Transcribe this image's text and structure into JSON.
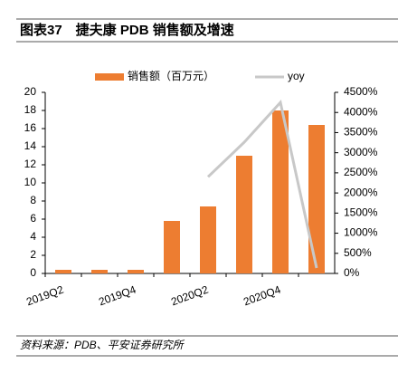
{
  "header": {
    "title": "图表37　捷夫康 PDB 销售额及增速"
  },
  "chart_data": {
    "type": "bar",
    "categories": [
      "2019Q2",
      null,
      "2019Q4",
      null,
      "2020Q2",
      null,
      "2020Q4",
      null
    ],
    "series": [
      {
        "name": "销售额（百万元）",
        "type": "bar",
        "color": "#ed7d31",
        "values": [
          0.4,
          0.4,
          0.4,
          5.8,
          7.4,
          13,
          18,
          16.4
        ]
      },
      {
        "name": "yoy",
        "type": "line",
        "axis": "y2",
        "color": "#c8c8c8",
        "values": [
          null,
          null,
          null,
          null,
          2400,
          3260,
          4250,
          135
        ]
      }
    ],
    "ylim": [
      0,
      20
    ],
    "yticks": [
      0,
      2,
      4,
      6,
      8,
      10,
      12,
      14,
      16,
      18,
      20
    ],
    "y2lim": [
      0,
      4500
    ],
    "y2ticks": [
      {
        "value": 0,
        "label": "0%"
      },
      {
        "value": 500,
        "label": "500%"
      },
      {
        "value": 1000,
        "label": "1000%"
      },
      {
        "value": 1500,
        "label": "1500%"
      },
      {
        "value": 2000,
        "label": "2000%"
      },
      {
        "value": 2500,
        "label": "2500%"
      },
      {
        "value": 3000,
        "label": "3000%"
      },
      {
        "value": 3500,
        "label": "3500%"
      },
      {
        "value": 4000,
        "label": "4000%"
      },
      {
        "value": 4500,
        "label": "4500%"
      }
    ],
    "legend": "top"
  },
  "footer": {
    "source": "资料来源：PDB、平安证券研究所"
  }
}
